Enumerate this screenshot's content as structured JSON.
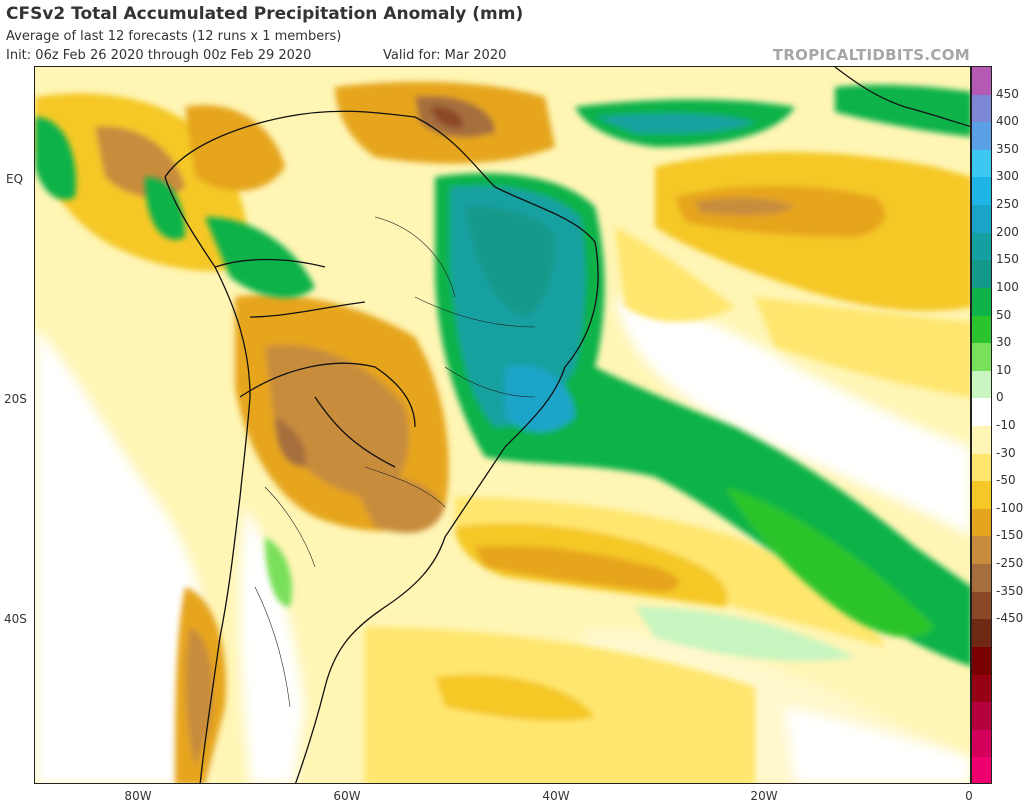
{
  "header": {
    "title": "CFSv2 Total Accumulated Precipitation Anomaly (mm)",
    "subtitle": "Average of last 12 forecasts (12 runs x 1 members)",
    "init": "Init: 06z Feb 26 2020 through 00z Feb 29 2020",
    "valid": "Valid for: Mar 2020",
    "brand": "TROPICALTIDBITS.COM"
  },
  "axes": {
    "y_ticks": [
      "EQ",
      "20S",
      "40S"
    ],
    "x_ticks": [
      "80W",
      "60W",
      "40W",
      "20W",
      "0"
    ]
  },
  "map": {
    "region": "South America and South Atlantic",
    "lon_range": [
      -90,
      0
    ],
    "lat_range": [
      -55,
      10
    ],
    "regions": [
      {
        "name": "amazon-brazil-wet",
        "anomaly_mm": 150
      },
      {
        "name": "south-atlantic-convergence-wet",
        "anomaly_mm": 50
      },
      {
        "name": "north-atlantic-itcz-wet",
        "anomaly_mm": 100
      },
      {
        "name": "guianas-dry",
        "anomaly_mm": -150
      },
      {
        "name": "paraguay-bolivia-dry",
        "anomaly_mm": -100
      },
      {
        "name": "southern-brazil-dry",
        "anomaly_mm": -50
      },
      {
        "name": "south-atlantic-dry",
        "anomaly_mm": -50
      },
      {
        "name": "tropical-east-atlantic-dry",
        "anomaly_mm": -100
      },
      {
        "name": "chile-andes-dry",
        "anomaly_mm": -100
      },
      {
        "name": "patagonia-near-normal",
        "anomaly_mm": 0
      }
    ]
  },
  "colorbar": {
    "labels": [
      "450",
      "400",
      "350",
      "300",
      "250",
      "200",
      "150",
      "100",
      "50",
      "30",
      "10",
      "0",
      "-10",
      "-30",
      "-50",
      "-100",
      "-150",
      "-250",
      "-350",
      "-450"
    ],
    "colors": [
      "#b45ab4",
      "#7c87d6",
      "#5aa0e6",
      "#3cc8f0",
      "#1eb4e6",
      "#1aa5c8",
      "#14a0a0",
      "#12998a",
      "#10b24a",
      "#2cc42c",
      "#78e05a",
      "#c8f5c0",
      "#ffffff",
      "#fff5b4",
      "#ffe66e",
      "#f5c828",
      "#e6a51e",
      "#c88c3c",
      "#a56e3c",
      "#8c4628",
      "#6e2814",
      "#780000",
      "#960014",
      "#b4003c",
      "#d2005a",
      "#f0006e"
    ]
  }
}
